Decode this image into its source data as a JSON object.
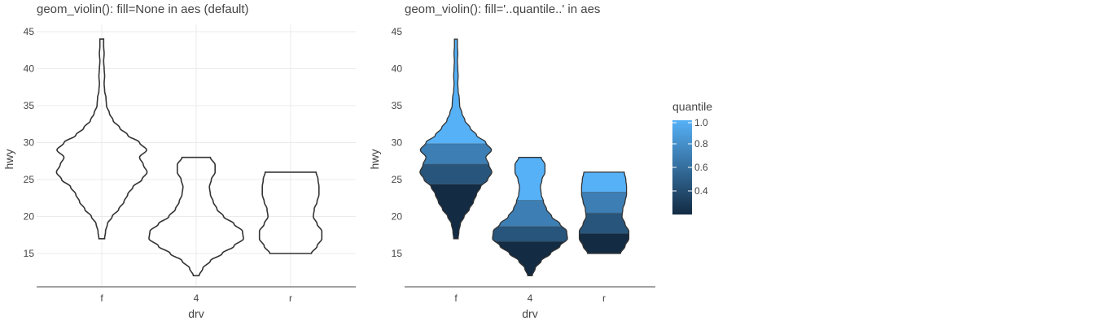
{
  "chart_data": [
    {
      "type": "violin",
      "title": "geom_violin(): fill=None in aes (default)",
      "xlabel": "drv",
      "ylabel": "hwy",
      "categories": [
        "f",
        "4",
        "r"
      ],
      "y_ticks": [
        15,
        20,
        25,
        30,
        35,
        40,
        45
      ],
      "ylim": [
        10.5,
        45
      ],
      "grid": true,
      "violins": [
        {
          "category": "f",
          "y_min": 17,
          "y_max": 44,
          "profile": [
            [
              17,
              0.06
            ],
            [
              18,
              0.08
            ],
            [
              19,
              0.12
            ],
            [
              20,
              0.22
            ],
            [
              21,
              0.36
            ],
            [
              22,
              0.47
            ],
            [
              23,
              0.55
            ],
            [
              24,
              0.66
            ],
            [
              25,
              0.85
            ],
            [
              26,
              0.96
            ],
            [
              27,
              0.88
            ],
            [
              28,
              0.8
            ],
            [
              29,
              0.95
            ],
            [
              30,
              0.8
            ],
            [
              31,
              0.55
            ],
            [
              32,
              0.38
            ],
            [
              33,
              0.24
            ],
            [
              34,
              0.16
            ],
            [
              35,
              0.1
            ],
            [
              36,
              0.09
            ],
            [
              37,
              0.06
            ],
            [
              38,
              0.05
            ],
            [
              39,
              0.06
            ],
            [
              40,
              0.05
            ],
            [
              41,
              0.04
            ],
            [
              42,
              0.05
            ],
            [
              43,
              0.04
            ],
            [
              44,
              0.04
            ]
          ]
        },
        {
          "category": "4",
          "y_min": 12,
          "y_max": 28,
          "profile": [
            [
              12,
              0.06
            ],
            [
              13,
              0.14
            ],
            [
              14,
              0.3
            ],
            [
              15,
              0.55
            ],
            [
              16,
              0.8
            ],
            [
              17,
              1.0
            ],
            [
              18,
              0.98
            ],
            [
              19,
              0.8
            ],
            [
              20,
              0.58
            ],
            [
              21,
              0.44
            ],
            [
              22,
              0.36
            ],
            [
              23,
              0.3
            ],
            [
              24,
              0.28
            ],
            [
              25,
              0.32
            ],
            [
              26,
              0.4
            ],
            [
              27,
              0.4
            ],
            [
              28,
              0.3
            ]
          ]
        },
        {
          "category": "r",
          "y_min": 15,
          "y_max": 26,
          "profile": [
            [
              15,
              0.44
            ],
            [
              16,
              0.56
            ],
            [
              17,
              0.66
            ],
            [
              18,
              0.66
            ],
            [
              19,
              0.56
            ],
            [
              20,
              0.48
            ],
            [
              21,
              0.5
            ],
            [
              22,
              0.56
            ],
            [
              23,
              0.6
            ],
            [
              24,
              0.6
            ],
            [
              25,
              0.58
            ],
            [
              26,
              0.54
            ]
          ]
        }
      ]
    },
    {
      "type": "violin",
      "title": "geom_violin(): fill='..quantile..' in aes",
      "xlabel": "drv",
      "ylabel": "hwy",
      "categories": [
        "f",
        "4",
        "r"
      ],
      "y_ticks": [
        15,
        20,
        25,
        30,
        35,
        40,
        45
      ],
      "ylim": [
        10.5,
        45
      ],
      "grid": false,
      "quantile_breaks": [
        0.25,
        0.5,
        0.75
      ],
      "band_quantiles": [
        0.2,
        0.4,
        0.6,
        0.8,
        1.0
      ],
      "legend": {
        "title": "quantile",
        "placement": "right",
        "labels": [
          "1.0",
          "0.8",
          "0.6",
          "0.4"
        ],
        "colors": [
          "#56b1f7",
          "#132b43"
        ]
      }
    }
  ]
}
